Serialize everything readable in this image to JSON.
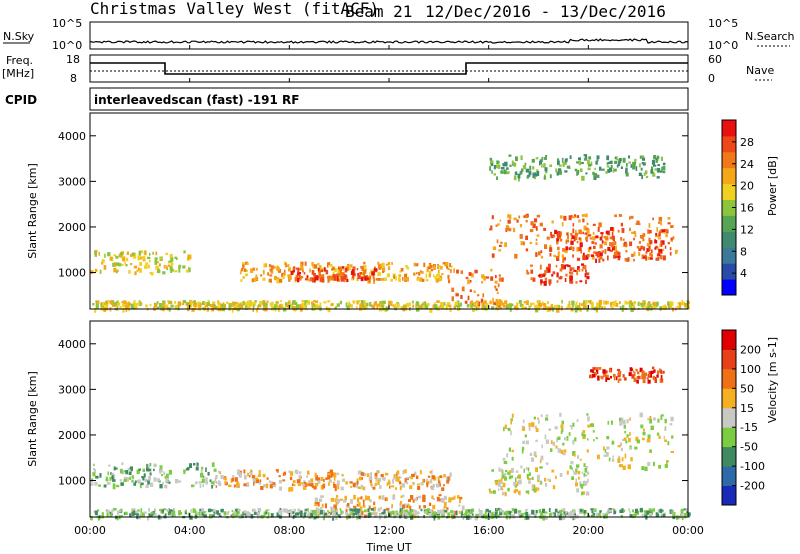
{
  "header": {
    "title": "Christmas Valley West (fitACF)",
    "beam": "Beam 21",
    "date_range": "12/Dec/2016 - 13/Dec/2016"
  },
  "top_panels": {
    "nsky_label": "N.Sky",
    "nsearch_label": "N.Search",
    "nsky_ticks": [
      "10^5",
      "10^0"
    ],
    "nsearch_ticks": [
      "10^5",
      "10^0"
    ],
    "freq_label": "Freq.",
    "freq_unit": "[MHz]",
    "freq_ticks": [
      "18",
      "8"
    ],
    "nave_label": "Nave",
    "nave_ticks": [
      "60",
      "0"
    ],
    "cpid_label": "CPID",
    "cpid_text": "interleavedscan (fast) -191 RF"
  },
  "x_axis": {
    "label": "Time UT",
    "ticks": [
      "00:00",
      "04:00",
      "08:00",
      "12:00",
      "16:00",
      "20:00",
      "00:00"
    ]
  },
  "power_panel": {
    "ylabel": "Slant Range [km]",
    "yticks": [
      "4000",
      "3000",
      "2000",
      "1000"
    ],
    "cbar_label": "Power [dB]",
    "cbar_ticks": [
      "28",
      "24",
      "20",
      "16",
      "12",
      "8",
      "4"
    ],
    "colors": [
      "#0000ff",
      "#2a4aa8",
      "#3a7a98",
      "#408a70",
      "#56a454",
      "#8cc43c",
      "#f0d020",
      "#f4a818",
      "#f07818",
      "#ee4818",
      "#e81010"
    ]
  },
  "velocity_panel": {
    "ylabel": "Slant Range [km]",
    "yticks": [
      "4000",
      "3000",
      "2000",
      "1000"
    ],
    "cbar_label": "Velocity [m s-1]",
    "cbar_ticks": [
      "200",
      "100",
      "50",
      "15",
      "-15",
      "-50",
      "-100",
      "-200"
    ],
    "colors": [
      "#1a2ab8",
      "#2e6aa8",
      "#408a60",
      "#7acc40",
      "#c8c8c4",
      "#f4b020",
      "#f07018",
      "#e84018",
      "#e00000"
    ]
  },
  "chart_data": {
    "type": "heatmap",
    "title": "Christmas Valley West (fitACF)",
    "xlabel": "Time UT",
    "ylabel": "Slant Range [km]",
    "xlim": [
      0,
      24
    ],
    "ylim": [
      200,
      4500
    ],
    "x_ticks": [
      "00:00",
      "04:00",
      "08:00",
      "12:00",
      "16:00",
      "20:00",
      "00:00"
    ],
    "power_regions": [
      {
        "t": [
          0.0,
          4.0
        ],
        "r": [
          1000,
          1500
        ],
        "level": 6,
        "desc": "band"
      },
      {
        "t": [
          6.0,
          14.5
        ],
        "r": [
          850,
          1250
        ],
        "level": 7
      },
      {
        "t": [
          8.0,
          11.5
        ],
        "r": [
          850,
          1150
        ],
        "level": 9
      },
      {
        "t": [
          14.5,
          16.5
        ],
        "r": [
          300,
          1100
        ],
        "level": 8
      },
      {
        "t": [
          16.0,
          23.5
        ],
        "r": [
          1300,
          2300
        ],
        "level": 8
      },
      {
        "t": [
          18.5,
          23.0
        ],
        "r": [
          1300,
          2000
        ],
        "level": 9
      },
      {
        "t": [
          17.5,
          20.0
        ],
        "r": [
          800,
          1200
        ],
        "level": 9
      },
      {
        "t": [
          16.0,
          23.0
        ],
        "r": [
          3100,
          3600
        ],
        "level": 4
      },
      {
        "t": [
          0.0,
          24.0
        ],
        "r": [
          220,
          400
        ],
        "level": 6
      }
    ],
    "velocity_regions": [
      {
        "t": [
          0.0,
          5.0
        ],
        "r": [
          900,
          1400
        ],
        "level": 3
      },
      {
        "t": [
          5.0,
          14.5
        ],
        "r": [
          850,
          1250
        ],
        "level": 5
      },
      {
        "t": [
          9.0,
          15.0
        ],
        "r": [
          250,
          700
        ],
        "level": 5
      },
      {
        "t": [
          16.5,
          23.5
        ],
        "r": [
          1300,
          2500
        ],
        "level": 4
      },
      {
        "t": [
          16.0,
          20.0
        ],
        "r": [
          750,
          1300
        ],
        "level": 4
      },
      {
        "t": [
          20.0,
          23.0
        ],
        "r": [
          3200,
          3500
        ],
        "level": 7
      },
      {
        "t": [
          0.0,
          24.0
        ],
        "r": [
          220,
          400
        ],
        "level": 3
      }
    ]
  }
}
